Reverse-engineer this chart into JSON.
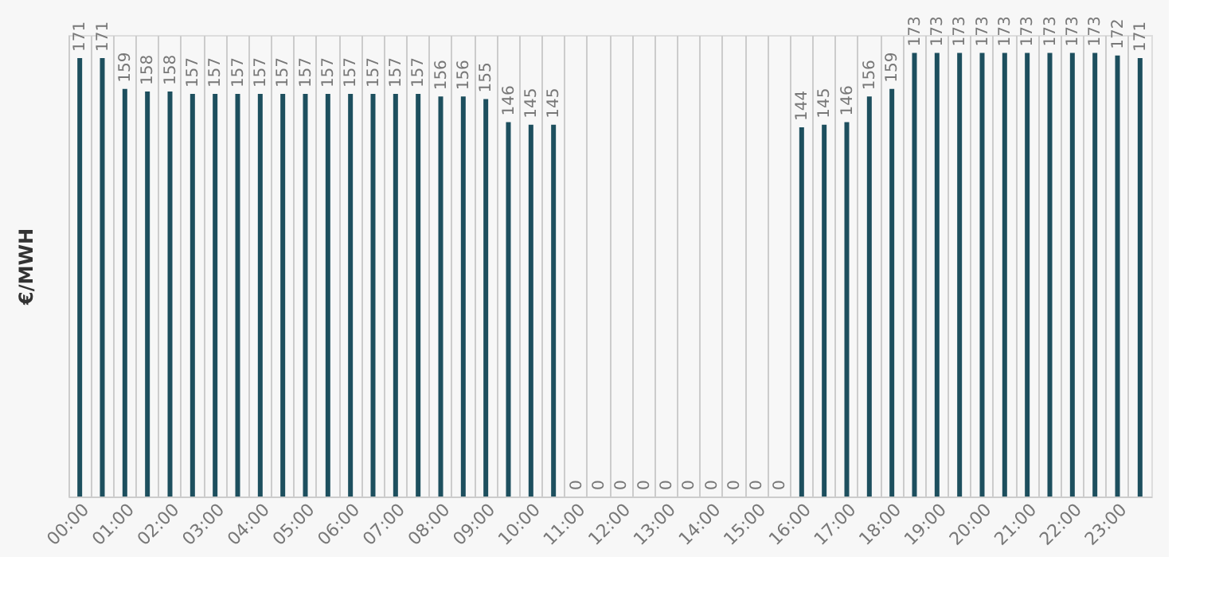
{
  "chart_data": {
    "type": "bar",
    "ylabel": "€/MWH",
    "categories": [
      "00:00",
      null,
      "01:00",
      null,
      "02:00",
      null,
      "03:00",
      null,
      "04:00",
      null,
      "05:00",
      null,
      "06:00",
      null,
      "07:00",
      null,
      "08:00",
      null,
      "09:00",
      null,
      "10:00",
      null,
      "11:00",
      null,
      "12:00",
      null,
      "13:00",
      null,
      "14:00",
      null,
      "15:00",
      null,
      "16:00",
      null,
      "17:00",
      null,
      "18:00",
      null,
      "19:00",
      null,
      "20:00",
      null,
      "21:00",
      null,
      "22:00",
      null,
      "23:00",
      null
    ],
    "values": [
      171,
      171,
      159,
      158,
      158,
      157,
      157,
      157,
      157,
      157,
      157,
      157,
      157,
      157,
      157,
      157,
      156,
      156,
      155,
      146,
      145,
      145,
      0,
      0,
      0,
      0,
      0,
      0,
      0,
      0,
      0,
      0,
      144,
      145,
      146,
      156,
      159,
      173,
      173,
      173,
      173,
      173,
      173,
      173,
      173,
      173,
      172,
      171
    ],
    "color": "#1d4f5e",
    "data_labels": true,
    "grid": "x",
    "tick_labels": "x"
  }
}
